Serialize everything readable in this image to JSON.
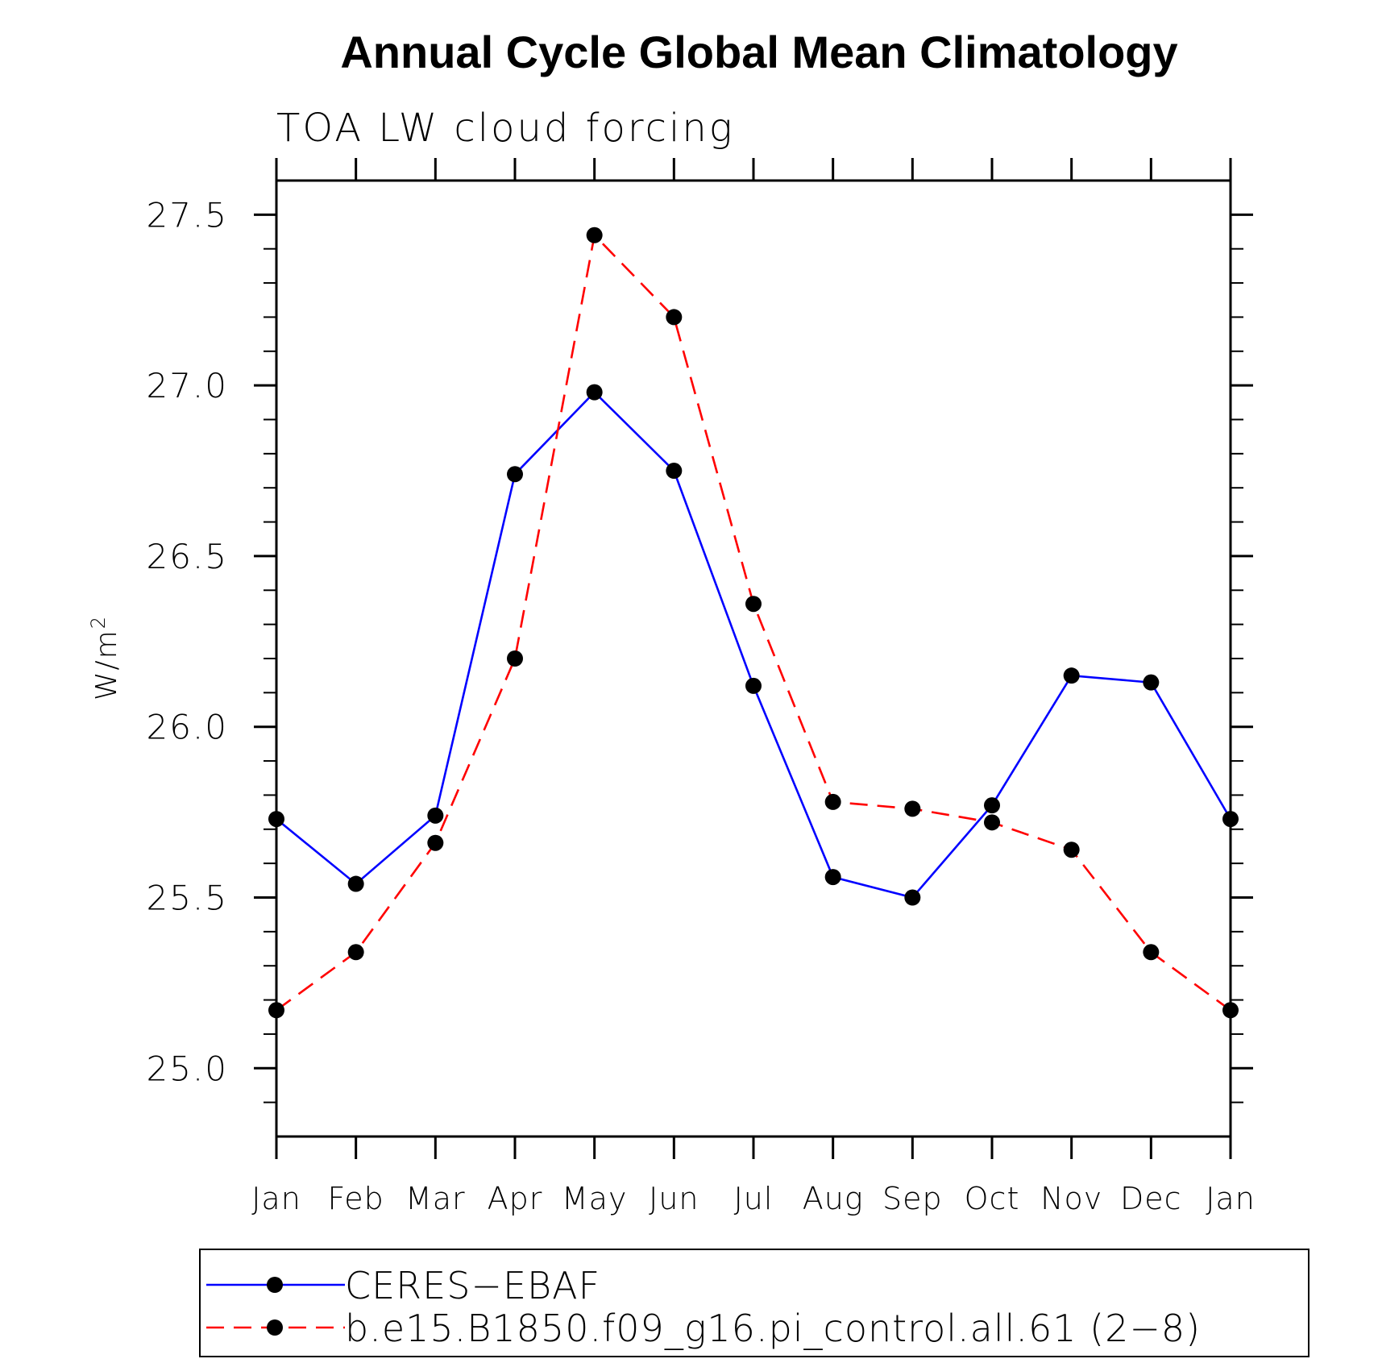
{
  "chart_data": {
    "type": "line",
    "title": "Annual Cycle Global Mean Climatology",
    "subtitle": "TOA LW cloud forcing",
    "ylabel": "W/m",
    "ylabel_superscript": "2",
    "xlabel": "",
    "categories": [
      "Jan",
      "Feb",
      "Mar",
      "Apr",
      "May",
      "Jun",
      "Jul",
      "Aug",
      "Sep",
      "Oct",
      "Nov",
      "Dec",
      "Jan"
    ],
    "ylim": [
      24.8,
      27.6
    ],
    "yticks": [
      25.0,
      25.5,
      26.0,
      26.5,
      27.0,
      27.5
    ],
    "ytick_labels": [
      "25.0",
      "25.5",
      "26.0",
      "26.5",
      "27.0",
      "27.5"
    ],
    "ytick_minor_step": 0.1,
    "grid": false,
    "legend_position": "bottom",
    "series": [
      {
        "name": "CERES−EBAF",
        "color": "#0000ff",
        "dash": "solid",
        "marker": "filled-circle",
        "values": [
          25.73,
          25.54,
          25.74,
          26.74,
          26.98,
          26.75,
          26.12,
          25.56,
          25.5,
          25.77,
          26.15,
          26.13,
          25.73
        ]
      },
      {
        "name": "b.e15.B1850.f09_g16.pi_control.all.61 (2−8)",
        "color": "#ff0000",
        "dash": "dashed",
        "marker": "filled-circle",
        "values": [
          25.17,
          25.34,
          25.66,
          26.2,
          27.44,
          27.2,
          26.36,
          25.78,
          25.76,
          25.72,
          25.64,
          25.34,
          25.17
        ]
      }
    ]
  }
}
